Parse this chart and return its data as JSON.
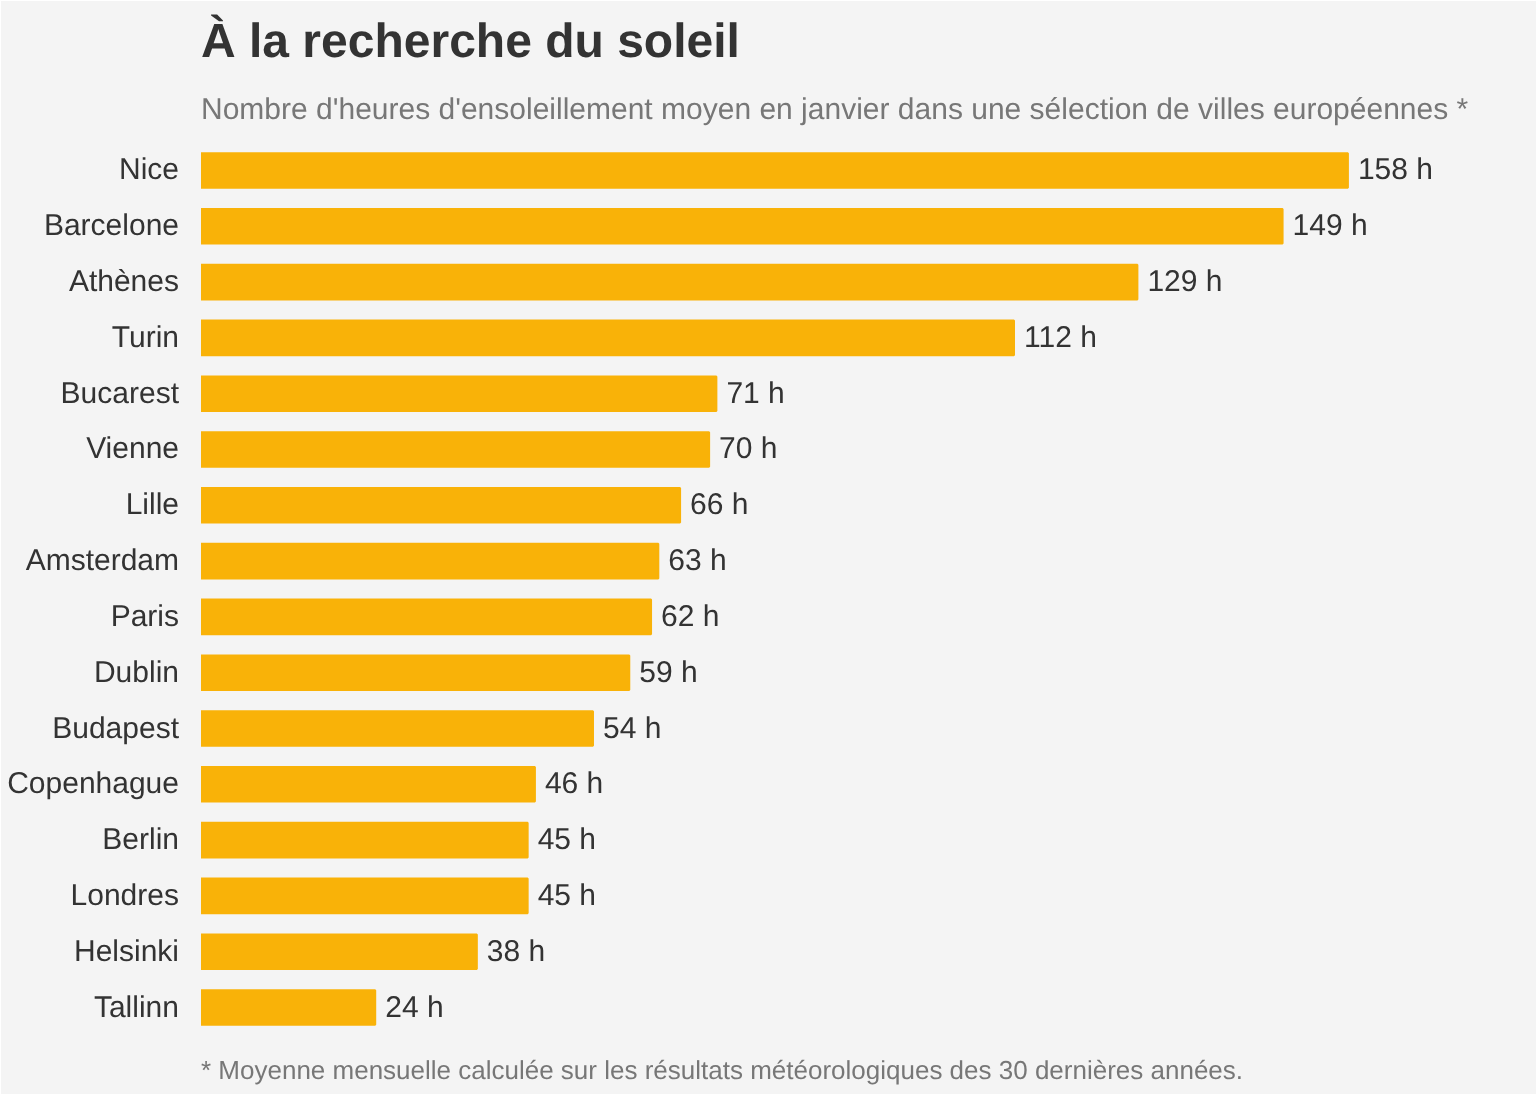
{
  "chart_data": {
    "type": "bar",
    "orientation": "horizontal",
    "title": "À la recherche du soleil",
    "subtitle": "Nombre d'heures d'ensoleillement moyen en janvier dans une sélection de villes européennes *",
    "categories": [
      "Nice",
      "Barcelone",
      "Athènes",
      "Turin",
      "Bucarest",
      "Vienne",
      "Lille",
      "Amsterdam",
      "Paris",
      "Dublin",
      "Budapest",
      "Copenhague",
      "Berlin",
      "Londres",
      "Helsinki",
      "Tallinn"
    ],
    "values": [
      158,
      149,
      129,
      112,
      71,
      70,
      66,
      63,
      62,
      59,
      54,
      46,
      45,
      45,
      38,
      24
    ],
    "value_labels": [
      "158 h",
      "149 h",
      "129 h",
      "112 h",
      "71 h",
      "70 h",
      "66 h",
      "63 h",
      "62 h",
      "59 h",
      "54 h",
      "46 h",
      "45 h",
      "45 h",
      "38 h",
      "24 h"
    ],
    "color": "#f9b208",
    "grid": false,
    "annotations": [
      "* Moyenne mensuelle calculée sur les résultats météorologiques des 30 dernières années."
    ]
  }
}
